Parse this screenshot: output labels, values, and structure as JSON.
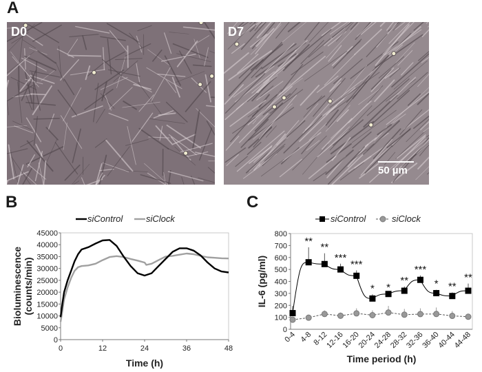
{
  "panels": {
    "a": "A",
    "b": "B",
    "c": "C"
  },
  "micrographs": [
    {
      "label": "D0",
      "tint": "#7e7178"
    },
    {
      "label": "D7",
      "tint": "#958a8f",
      "scale_bar": "50 µm"
    }
  ],
  "chart_data": [
    {
      "type": "line",
      "xlabel": "Time (h)",
      "ylabel": "Bioluminescence (counts/min)",
      "ylabel_lines": [
        "Bioluminescence",
        "(counts/min)"
      ],
      "xlim": [
        0,
        48
      ],
      "ylim": [
        0,
        45000
      ],
      "xticks": [
        0,
        12,
        24,
        36,
        48
      ],
      "yticks": [
        0,
        5000,
        10000,
        15000,
        20000,
        25000,
        30000,
        35000,
        40000,
        45000
      ],
      "legend": "top",
      "grid": false,
      "series": [
        {
          "name": "siControl",
          "color": "#000000",
          "x": [
            0,
            0.5,
            1,
            2,
            3,
            4,
            5,
            6,
            8,
            10,
            12,
            14,
            16,
            18,
            20,
            22,
            24,
            26,
            28,
            30,
            32,
            34,
            36,
            38,
            40,
            42,
            44,
            46,
            48
          ],
          "y": [
            9500,
            15000,
            20000,
            25000,
            29000,
            33000,
            36000,
            38000,
            39000,
            40500,
            41800,
            42000,
            39500,
            35000,
            31000,
            28000,
            27000,
            28000,
            31000,
            34000,
            37000,
            38500,
            38500,
            37500,
            35500,
            32500,
            30000,
            28700,
            28300
          ]
        },
        {
          "name": "siClock",
          "color": "#a0a0a0",
          "x": [
            0,
            0.5,
            1,
            2,
            3,
            4,
            5,
            6,
            8,
            10,
            12,
            14,
            16,
            18,
            20,
            22,
            24,
            24.5,
            26,
            28,
            30,
            32,
            34,
            36,
            38,
            40,
            42,
            44,
            46,
            48
          ],
          "y": [
            7500,
            12000,
            17000,
            22000,
            26000,
            29000,
            30500,
            31000,
            31300,
            32000,
            33500,
            34800,
            35200,
            34800,
            34000,
            33300,
            32500,
            31500,
            32000,
            33500,
            35000,
            35300,
            35800,
            36300,
            36000,
            35300,
            34700,
            34500,
            34300,
            34200
          ]
        }
      ]
    },
    {
      "type": "line",
      "xlabel": "Time period (h)",
      "ylabel": "IL-6 (pg/ml)",
      "ylim": [
        0,
        800
      ],
      "yticks": [
        0,
        100,
        200,
        300,
        400,
        500,
        600,
        700,
        800
      ],
      "categories": [
        "0-4",
        "4-8",
        "8-12",
        "12-16",
        "16-20",
        "20-24",
        "24-28",
        "28-32",
        "32-36",
        "36-40",
        "40-44",
        "44-48"
      ],
      "legend": "top",
      "grid": false,
      "series": [
        {
          "name": "siControl",
          "marker": "square",
          "line": "solid",
          "color": "#000000",
          "values": [
            135,
            560,
            545,
            500,
            447,
            257,
            295,
            322,
            413,
            302,
            278,
            322
          ],
          "error_top": [
            195,
            685,
            635,
            548,
            492,
            292,
            300,
            358,
            450,
            330,
            308,
            382
          ]
        },
        {
          "name": "siClock",
          "marker": "circle",
          "line": "dashed",
          "color": "#999999",
          "values": [
            80,
            97,
            128,
            113,
            133,
            118,
            140,
            122,
            127,
            128,
            112,
            105
          ],
          "error_top": [
            82,
            102,
            157,
            140,
            175,
            158,
            195,
            170,
            175,
            182,
            152,
            128
          ]
        }
      ],
      "significance": [
        "",
        "**",
        "**",
        "***",
        "***",
        "*",
        "*",
        "**",
        "***",
        "*",
        "**",
        "**"
      ]
    }
  ]
}
